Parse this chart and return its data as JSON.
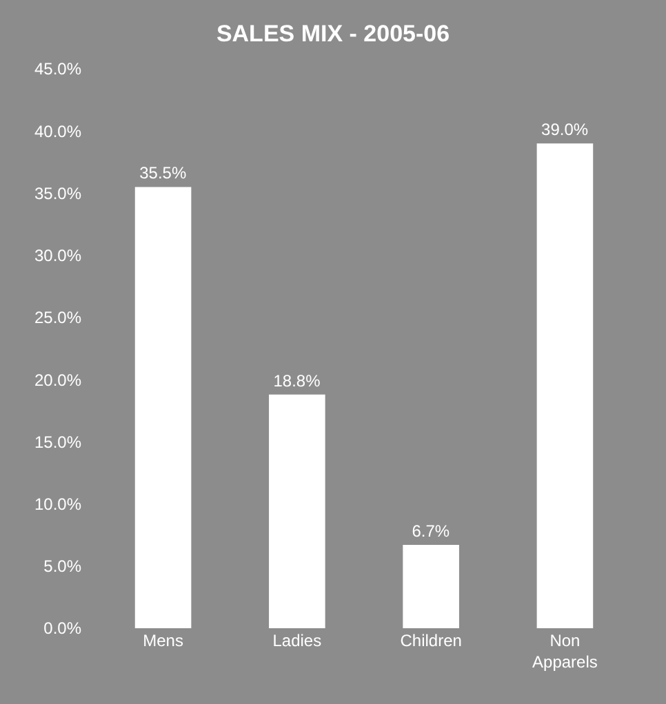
{
  "chart_data": {
    "type": "bar",
    "title": "SALES MIX - 2005-06",
    "categories": [
      "Mens",
      "Ladies",
      "Children",
      "Non Apparels"
    ],
    "values": [
      35.5,
      18.8,
      6.7,
      39.0
    ],
    "value_labels": [
      "35.5%",
      "18.8%",
      "6.7%",
      "39.0%"
    ],
    "color": "#ffffff",
    "ylim": [
      0,
      45
    ],
    "yticks": [
      {
        "value": 0,
        "label": "0.0%"
      },
      {
        "value": 5,
        "label": "5.0%"
      },
      {
        "value": 10,
        "label": "10.0%"
      },
      {
        "value": 15,
        "label": "15.0%"
      },
      {
        "value": 20,
        "label": "20.0%"
      },
      {
        "value": 25,
        "label": "25.0%"
      },
      {
        "value": 30,
        "label": "30.0%"
      },
      {
        "value": 35,
        "label": "35.0%"
      },
      {
        "value": 40,
        "label": "40.0%"
      },
      {
        "value": 45,
        "label": "45.0%"
      }
    ],
    "grid": false
  }
}
